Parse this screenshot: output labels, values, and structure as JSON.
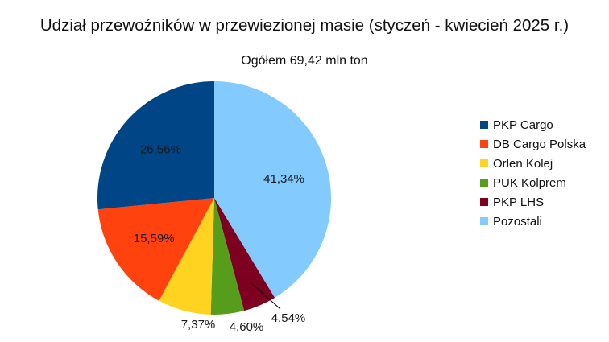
{
  "chart_data": {
    "type": "pie",
    "title": "Udział przewoźników w przewiezionej masie (styczeń - kwiecień 2025 r.)",
    "subtitle": "Ogółem 69,42 mln ton",
    "legend_position": "right",
    "slices": [
      {
        "name": "Pozostali",
        "value": 41.34,
        "label": "41,34%",
        "color": "#83CAFF"
      },
      {
        "name": "PKP LHS",
        "value": 4.54,
        "label": "4,54%",
        "color": "#7E0021"
      },
      {
        "name": "PUK Kolprem",
        "value": 4.6,
        "label": "4,60%",
        "color": "#579D1C"
      },
      {
        "name": "Orlen Kolej",
        "value": 7.37,
        "label": "7,37%",
        "color": "#FFD320"
      },
      {
        "name": "DB Cargo Polska",
        "value": 15.59,
        "label": "15,59%",
        "color": "#FF420E"
      },
      {
        "name": "PKP Cargo",
        "value": 26.56,
        "label": "26,56%",
        "color": "#004586"
      }
    ],
    "legend": [
      {
        "name": "PKP Cargo",
        "color": "#004586"
      },
      {
        "name": "DB Cargo Polska",
        "color": "#FF420E"
      },
      {
        "name": "Orlen Kolej",
        "color": "#FFD320"
      },
      {
        "name": "PUK Kolprem",
        "color": "#579D1C"
      },
      {
        "name": "PKP LHS",
        "color": "#7E0021"
      },
      {
        "name": "Pozostali",
        "color": "#83CAFF"
      }
    ]
  }
}
